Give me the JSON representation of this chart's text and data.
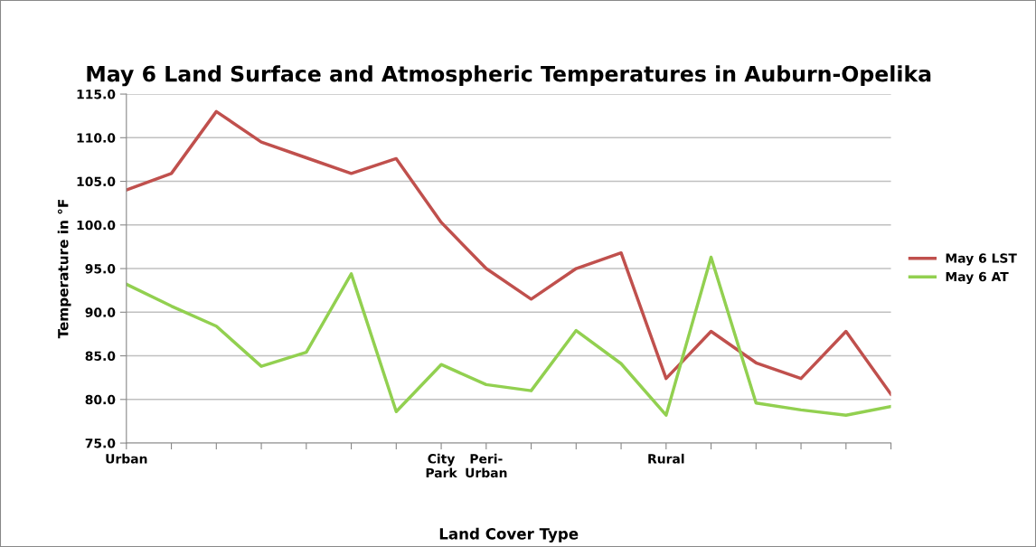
{
  "chart_data": {
    "type": "line",
    "title": "May 6 Land Surface and Atmospheric Temperatures in Auburn-Opelika",
    "xlabel": "Land Cover Type",
    "ylabel": "Temperature in °F",
    "categories": [
      "Urban",
      null,
      null,
      null,
      null,
      null,
      null,
      "City\nPark",
      "Peri-\nUrban",
      null,
      null,
      null,
      "Rural",
      null,
      null,
      null,
      null,
      null
    ],
    "series": [
      {
        "name": "May 6 LST",
        "color": "#c0504d",
        "values": [
          104.0,
          105.9,
          113.0,
          109.5,
          107.7,
          105.9,
          107.6,
          100.3,
          95.0,
          91.5,
          95.0,
          96.8,
          82.4,
          87.8,
          84.2,
          82.4,
          87.8,
          80.6
        ]
      },
      {
        "name": "May 6 AT",
        "color": "#92d050",
        "values": [
          93.2,
          90.7,
          88.4,
          83.8,
          85.4,
          94.4,
          78.6,
          84.0,
          81.7,
          81.0,
          87.9,
          84.1,
          78.2,
          96.3,
          79.6,
          78.8,
          78.2,
          79.2
        ]
      }
    ],
    "ylim": [
      75,
      115
    ],
    "yticks": [
      {
        "value": 75,
        "label": "75.0"
      },
      {
        "value": 80,
        "label": "80.0"
      },
      {
        "value": 85,
        "label": "85.0"
      },
      {
        "value": 90,
        "label": "90.0"
      },
      {
        "value": 95,
        "label": "95.0"
      },
      {
        "value": 100,
        "label": "100.0"
      },
      {
        "value": 105,
        "label": "105.0"
      },
      {
        "value": 110,
        "label": "110.0"
      },
      {
        "value": 115,
        "label": "115.0"
      }
    ],
    "grid": "y",
    "legend": "right",
    "marker": "none",
    "line_style": "solid"
  }
}
